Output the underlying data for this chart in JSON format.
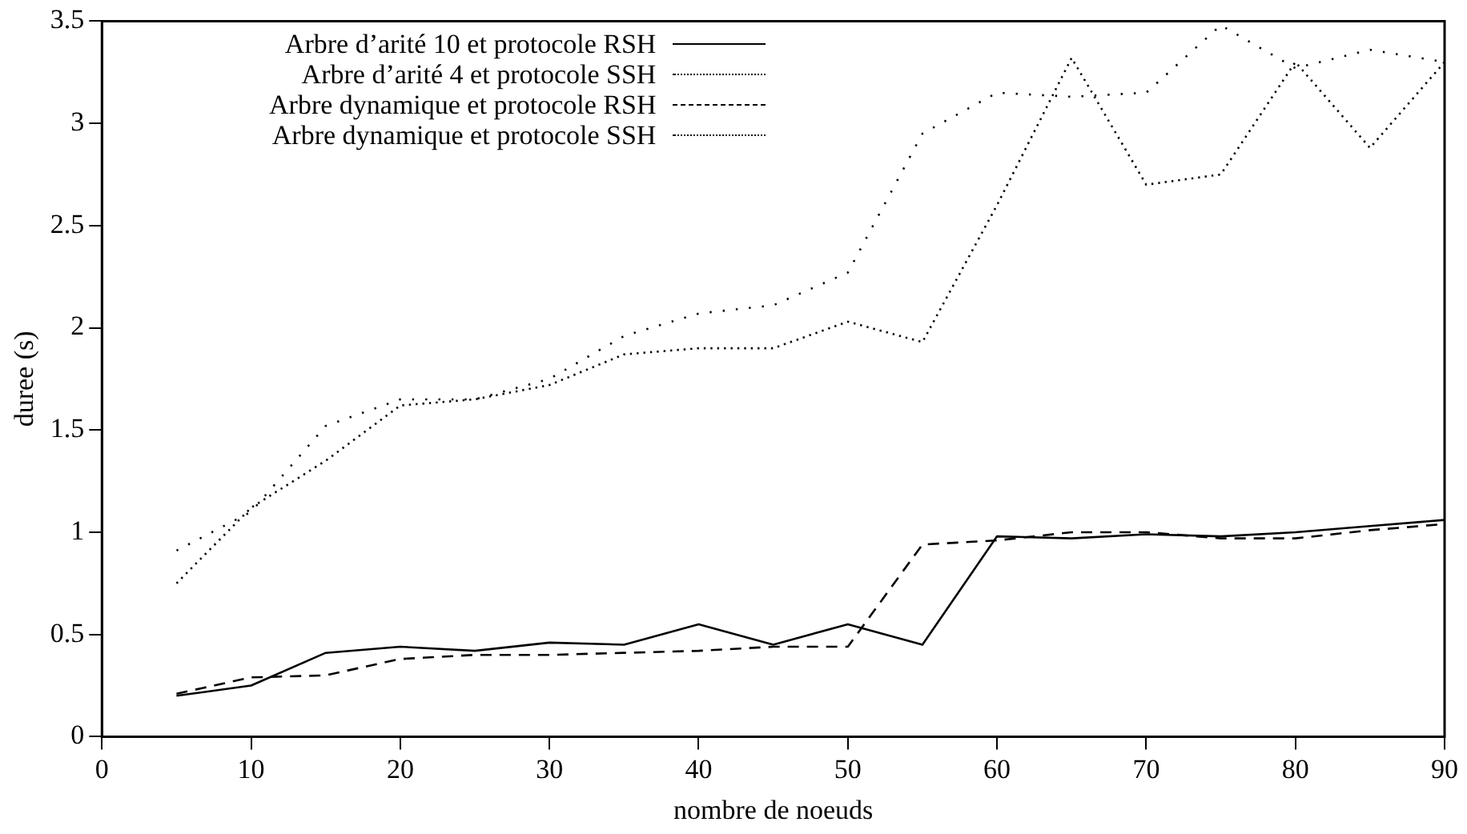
{
  "chart_data": {
    "type": "line",
    "xlabel": "nombre de noeuds",
    "ylabel": "duree (s)",
    "x": [
      5,
      10,
      15,
      20,
      25,
      30,
      35,
      40,
      45,
      50,
      55,
      60,
      65,
      70,
      75,
      80,
      85,
      90
    ],
    "series": [
      {
        "name": "Arbre d’arité 10 et protocole RSH",
        "color": "#000000",
        "line_style": "solid",
        "values": [
          0.2,
          0.25,
          0.41,
          0.44,
          0.42,
          0.46,
          0.45,
          0.55,
          0.45,
          0.55,
          0.45,
          0.98,
          0.97,
          0.99,
          0.98,
          1.0,
          1.03,
          1.06
        ]
      },
      {
        "name": "Arbre d’arité 4 et protocole SSH",
        "color": "#000000",
        "line_style": "dotted",
        "values": [
          0.75,
          1.12,
          1.35,
          1.62,
          1.65,
          1.72,
          1.87,
          1.9,
          1.9,
          2.03,
          1.93,
          2.6,
          3.32,
          2.7,
          2.75,
          3.3,
          2.88,
          3.3
        ]
      },
      {
        "name": "Arbre dynamique et protocole RSH",
        "color": "#000000",
        "line_style": "dashed",
        "values": [
          0.21,
          0.29,
          0.3,
          0.38,
          0.4,
          0.4,
          0.41,
          0.42,
          0.44,
          0.44,
          0.94,
          0.96,
          1.0,
          1.0,
          0.97,
          0.97,
          1.01,
          1.04
        ]
      },
      {
        "name": "Arbre dynamique et protocole SSH",
        "color": "#000000",
        "line_style": "dotted",
        "values": [
          0.91,
          1.1,
          1.52,
          1.65,
          1.65,
          1.75,
          1.96,
          2.07,
          2.11,
          2.27,
          2.95,
          3.15,
          3.13,
          3.15,
          3.48,
          3.27,
          3.36,
          3.3
        ]
      }
    ],
    "xlim": [
      0,
      90
    ],
    "xticks": [
      0,
      10,
      20,
      30,
      40,
      50,
      60,
      70,
      80,
      90
    ],
    "ylim": [
      0,
      3.5
    ],
    "yticks": [
      0,
      0.5,
      1,
      1.5,
      2,
      2.5,
      3,
      3.5
    ],
    "grid": false,
    "legend": "top left",
    "marker": "none"
  }
}
